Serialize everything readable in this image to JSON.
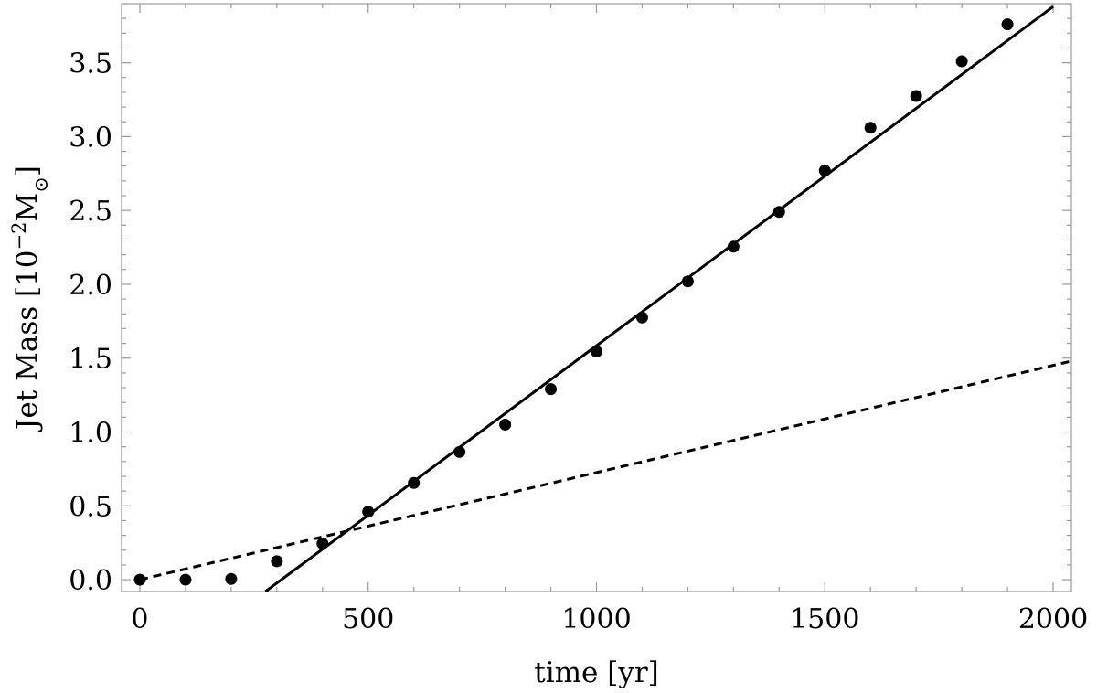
{
  "chart_data": {
    "type": "scatter",
    "title": "",
    "xlabel": "time [yr]",
    "ylabel_main": "Jet Mass [10",
    "ylabel_exp": "−2",
    "ylabel_unit": "M",
    "ylabel_sub": "⊙",
    "ylabel_close": "]",
    "xlim": [
      -40,
      2040
    ],
    "ylim": [
      -0.08,
      3.9
    ],
    "x_ticks": [
      0,
      500,
      1000,
      1500,
      2000
    ],
    "x_tick_labels": [
      "0",
      "500",
      "1000",
      "1500",
      "2000"
    ],
    "y_ticks": [
      0.0,
      0.5,
      1.0,
      1.5,
      2.0,
      2.5,
      3.0,
      3.5
    ],
    "y_tick_labels": [
      "0.0",
      "0.5",
      "1.0",
      "1.5",
      "2.0",
      "2.5",
      "3.0",
      "3.5"
    ],
    "x_minor_step": 100,
    "y_minor_step": 0.1,
    "grid": false,
    "legend": "none",
    "series": [
      {
        "kind": "points",
        "color": "#000000",
        "x": [
          0,
          100,
          200,
          300,
          400,
          500,
          600,
          700,
          800,
          900,
          1000,
          1100,
          1200,
          1300,
          1400,
          1500,
          1600,
          1700,
          1800,
          1900
        ],
        "y": [
          0.0,
          0.0,
          0.005,
          0.125,
          0.245,
          0.46,
          0.655,
          0.865,
          1.05,
          1.29,
          1.545,
          1.775,
          2.02,
          2.255,
          2.49,
          2.77,
          3.06,
          3.275,
          3.51,
          3.76
        ]
      },
      {
        "kind": "line",
        "style": "solid",
        "color": "#000000",
        "x": [
          275,
          2000
        ],
        "y": [
          -0.08,
          3.88
        ]
      },
      {
        "kind": "line",
        "style": "dashed",
        "color": "#000000",
        "x": [
          0,
          2040
        ],
        "y": [
          0.0,
          1.48
        ]
      }
    ]
  }
}
